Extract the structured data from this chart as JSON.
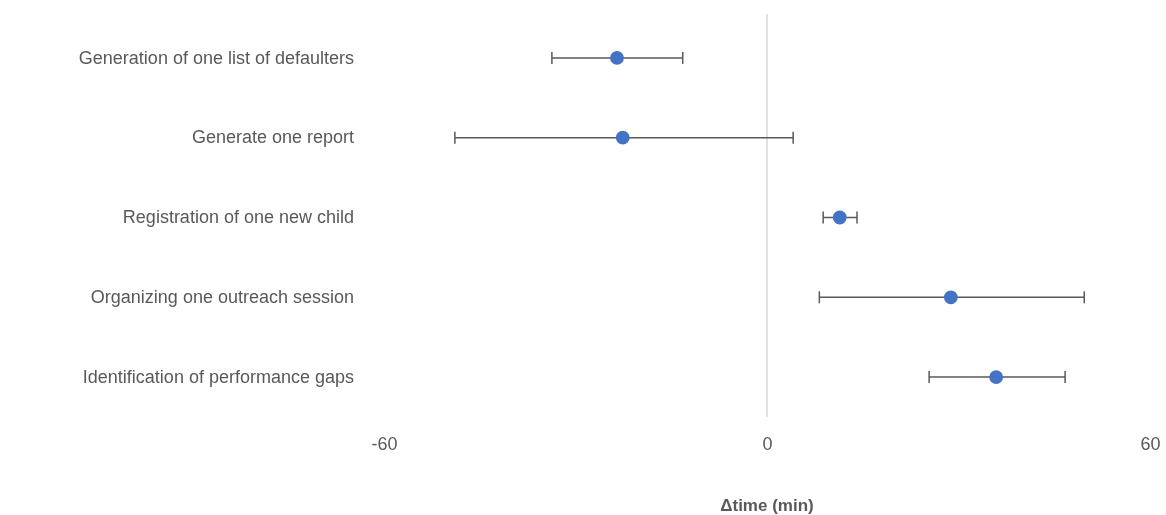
{
  "chart_data": {
    "type": "scatter",
    "orientation": "horizontal",
    "xlabel": "Δtime (min)",
    "categories": [
      "Generation of one list of defaulters",
      "Generate one report",
      "Registration of one new child",
      "Organizing one outreach session",
      "Identification of performance gaps"
    ],
    "series": [
      {
        "color": "#4472c4",
        "values": [
          -23.5,
          -22.6,
          11.4,
          28.8,
          35.9
        ],
        "errors": [
          [
            -33.7,
            -13.2
          ],
          [
            -48.9,
            4.1
          ],
          [
            8.8,
            14.1
          ],
          [
            8.2,
            49.7
          ],
          [
            25.4,
            46.7
          ]
        ]
      }
    ],
    "xlim": [
      -60,
      60
    ],
    "xticks": [
      -60,
      0,
      60
    ],
    "marker": "circle",
    "grid": false,
    "ref_lines": [
      {
        "axis": "x",
        "value": 0,
        "color": "#d9d9d9"
      }
    ]
  }
}
